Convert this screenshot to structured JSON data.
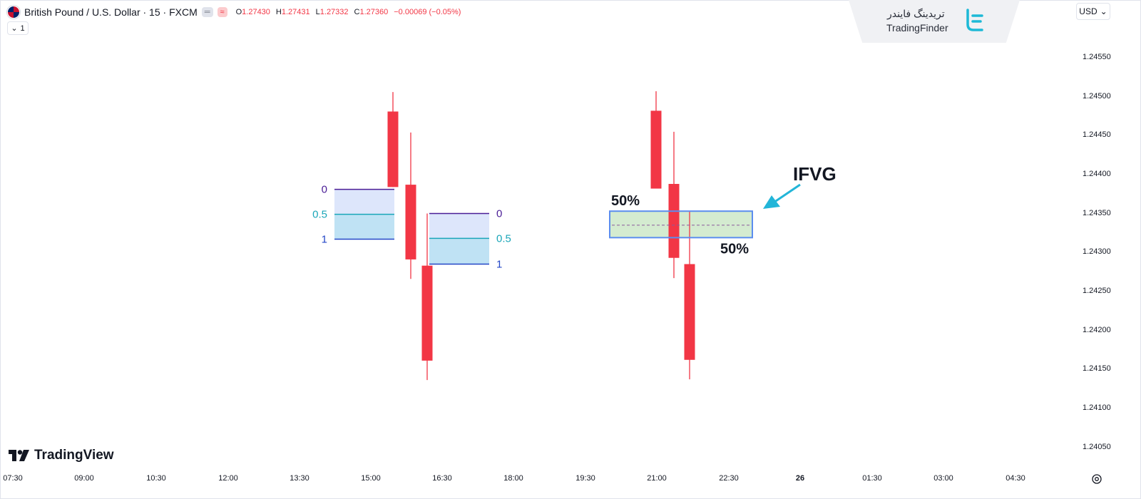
{
  "header": {
    "symbol_title": "British Pound / U.S. Dollar · 15 · FXCM",
    "pill_gray": "═",
    "pill_red": "≈",
    "ohlc": {
      "o_key": "O",
      "o_val": "1.27430",
      "h_key": "H",
      "h_val": "1.27431",
      "l_key": "L",
      "l_val": "1.27332",
      "c_key": "C",
      "c_val": "1.27360",
      "change": "−0.00069 (−0.05%)"
    },
    "collapse_count": "1",
    "chevron": "⌄"
  },
  "watermark": {
    "text_fa": "تریدینگ فایندر",
    "text_en": "TradingFinder"
  },
  "currency": {
    "label": "USD",
    "chevron": "⌄"
  },
  "price_axis": [
    "1.24550",
    "1.24500",
    "1.24450",
    "1.24400",
    "1.24350",
    "1.24300",
    "1.24250",
    "1.24200",
    "1.24150",
    "1.24100",
    "1.24050"
  ],
  "time_axis": [
    "07:30",
    "09:00",
    "10:30",
    "12:00",
    "13:30",
    "15:00",
    "16:30",
    "18:00",
    "19:30",
    "21:00",
    "22:30",
    "26",
    "01:30",
    "03:00",
    "04:30"
  ],
  "footer": {
    "logo_text": "TradingView"
  },
  "colors": {
    "bear": "#f23645",
    "fvg_top_fill": "#dde6fb",
    "fvg_bottom_fill": "#bfe2f4",
    "ifvg_fill": "#d4ebd0",
    "ifvg_border": "#5b8def",
    "arrow": "#22b5d8",
    "level_0": "#4a1d96",
    "level_05": "#1aa6b8",
    "level_1": "#2447c7"
  },
  "chart_data": {
    "type": "candlestick",
    "symbol": "British Pound / U.S. Dollar · 15 · FXCM",
    "candles": [
      {
        "group": "left",
        "direction": "bearish",
        "open": 1.2448,
        "close": 1.24383,
        "high": 1.24505,
        "low": 1.24383
      },
      {
        "group": "left",
        "direction": "bearish",
        "open": 1.24386,
        "close": 1.2429,
        "high": 1.24453,
        "low": 1.24265
      },
      {
        "group": "left",
        "direction": "bearish",
        "open": 1.24282,
        "close": 1.2416,
        "high": 1.24349,
        "low": 1.24135
      },
      {
        "group": "right",
        "direction": "bearish",
        "open": 1.24481,
        "close": 1.24381,
        "high": 1.24506,
        "low": 1.24381
      },
      {
        "group": "right",
        "direction": "bearish",
        "open": 1.24387,
        "close": 1.24292,
        "high": 1.24454,
        "low": 1.24266
      },
      {
        "group": "right",
        "direction": "bearish",
        "open": 1.24284,
        "close": 1.24161,
        "high": 1.24352,
        "low": 1.24136
      }
    ],
    "fvg_zones": [
      {
        "label_0": "0",
        "label_05": "0.5",
        "label_1": "1",
        "top": 1.2438,
        "mid": 1.24348,
        "bottom": 1.24316
      },
      {
        "label_0": "0",
        "label_05": "0.5",
        "label_1": "1",
        "top": 1.24349,
        "mid": 1.24317,
        "bottom": 1.24284
      }
    ],
    "ifvg": {
      "label": "IFVG",
      "top": 1.24352,
      "mid": 1.24334,
      "bottom": 1.24318,
      "label_top": "50%",
      "label_bottom": "50%"
    },
    "ylim": [
      1.24035,
      1.2458
    ]
  }
}
